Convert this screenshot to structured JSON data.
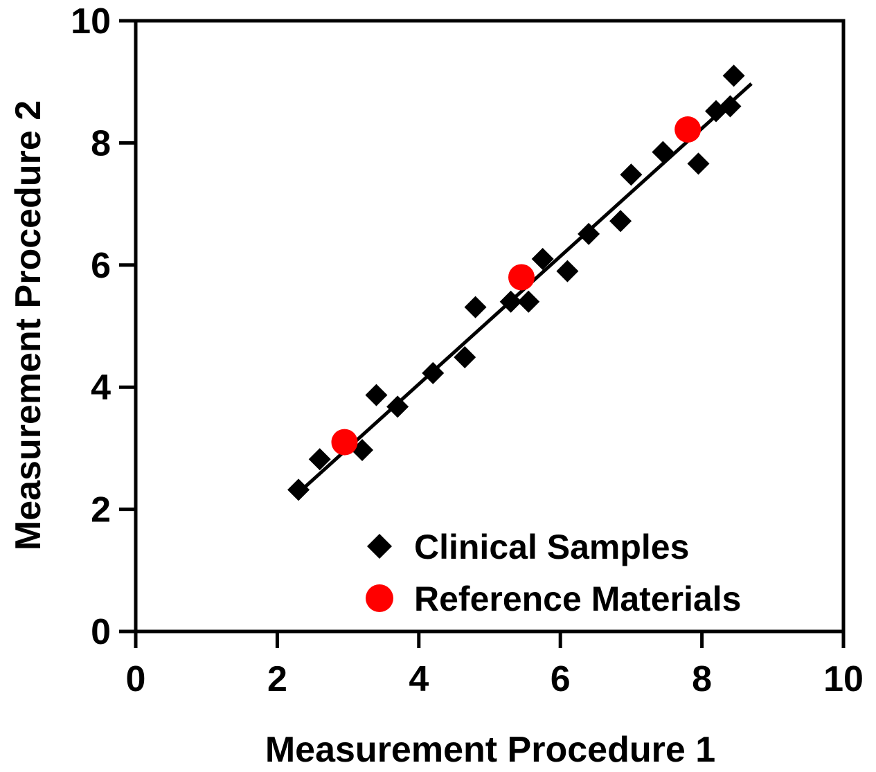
{
  "chart_data": {
    "type": "scatter",
    "xlabel": "Measurement Procedure 1",
    "ylabel": "Measurement Procedure 2",
    "xlim": [
      0,
      10
    ],
    "ylim": [
      0,
      10
    ],
    "xticks": [
      "0",
      "2",
      "4",
      "6",
      "8",
      "10"
    ],
    "yticks": [
      "0",
      "2",
      "4",
      "6",
      "8",
      "10"
    ],
    "grid": false,
    "legend_position": "bottom-right",
    "series": [
      {
        "name": "Clinical Samples",
        "marker": "diamond",
        "color": "#000000",
        "points": [
          [
            2.3,
            2.32
          ],
          [
            2.6,
            2.82
          ],
          [
            3.2,
            2.97
          ],
          [
            3.4,
            3.87
          ],
          [
            3.7,
            3.68
          ],
          [
            4.2,
            4.23
          ],
          [
            4.65,
            4.49
          ],
          [
            4.8,
            5.31
          ],
          [
            5.3,
            5.4
          ],
          [
            5.55,
            5.4
          ],
          [
            5.75,
            6.1
          ],
          [
            6.1,
            5.9
          ],
          [
            6.4,
            6.51
          ],
          [
            6.85,
            6.72
          ],
          [
            7.0,
            7.48
          ],
          [
            7.45,
            7.85
          ],
          [
            7.95,
            7.66
          ],
          [
            8.2,
            8.52
          ],
          [
            8.4,
            8.6
          ],
          [
            8.45,
            9.1
          ]
        ]
      },
      {
        "name": "Reference Materials",
        "marker": "circle",
        "color": "#ff0000",
        "points": [
          [
            2.95,
            3.1
          ],
          [
            5.45,
            5.8
          ],
          [
            7.8,
            8.22
          ]
        ]
      }
    ],
    "fit_line": {
      "x": [
        2.3,
        8.7
      ],
      "y": [
        2.27,
        8.97
      ],
      "color": "#000000"
    }
  }
}
